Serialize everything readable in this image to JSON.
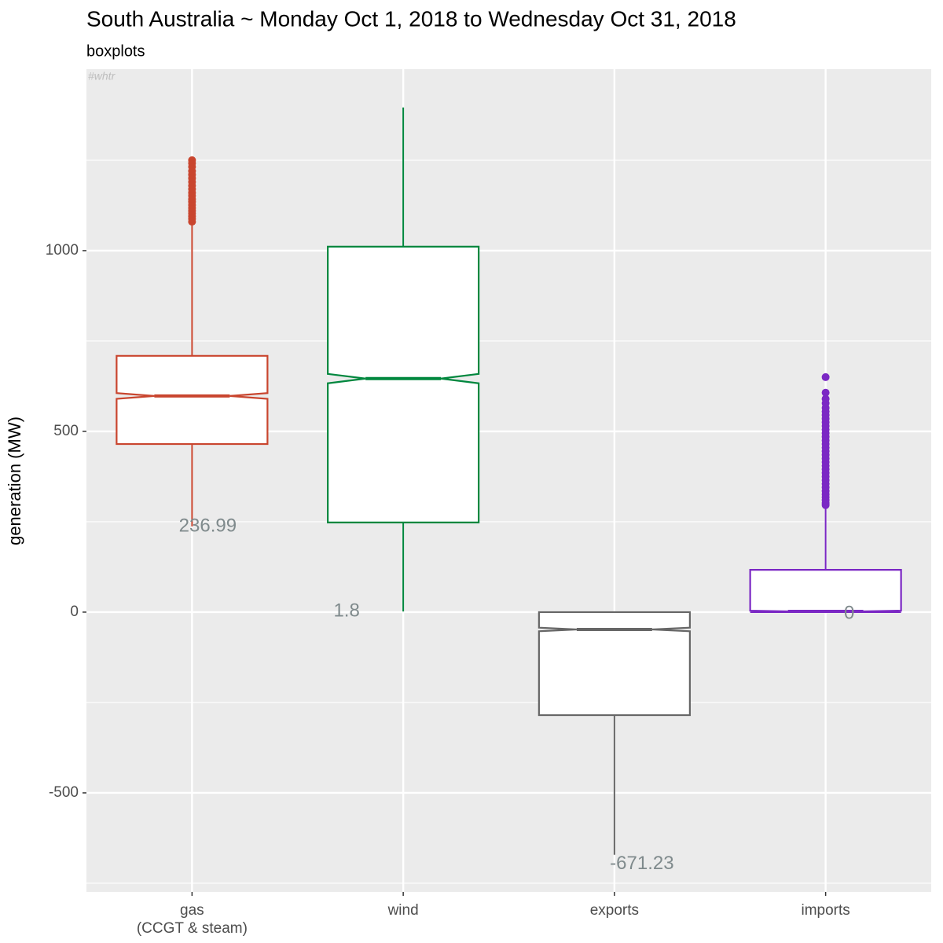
{
  "chart_data": {
    "type": "boxplot",
    "title": "South Australia ~ Monday Oct 1, 2018 to Wednesday Oct 31, 2018",
    "subtitle": "boxplots",
    "watermark": "#whtr",
    "y_label": "generation (MW)",
    "categories": [
      "gas\n(CCGT & steam)",
      "wind",
      "exports",
      "imports"
    ],
    "boxes": [
      {
        "color": "#c9452e",
        "min": 236.99,
        "q1": 465,
        "median": 598,
        "q3": 709,
        "max": 1074,
        "notch": [
          590,
          606
        ],
        "outliers": [
          1080,
          1088,
          1095,
          1103,
          1110,
          1118,
          1126,
          1135,
          1143,
          1152,
          1160,
          1170,
          1180,
          1190,
          1200,
          1210,
          1220,
          1232,
          1242,
          1250
        ]
      },
      {
        "color": "#00873e",
        "min": 1.8,
        "q1": 248,
        "median": 646,
        "q3": 1011,
        "max": 1396,
        "notch": [
          633,
          659
        ],
        "outliers": []
      },
      {
        "color": "#666666",
        "min": -671.23,
        "q1": -285,
        "median": -48,
        "q3": 0,
        "max": 0,
        "notch": [
          -53,
          -43
        ],
        "outliers": []
      },
      {
        "color": "#7b28c4",
        "min": 0,
        "q1": 0,
        "median": 2,
        "q3": 117,
        "max": 291,
        "notch": [
          0,
          4
        ],
        "outliers": [
          296,
          302,
          310,
          318,
          326,
          335,
          345,
          355,
          365,
          375,
          385,
          395,
          405,
          415,
          425,
          435,
          445,
          455,
          465,
          475,
          485,
          495,
          505,
          515,
          525,
          535,
          545,
          555,
          565,
          578,
          590,
          607,
          650
        ]
      }
    ],
    "ylim": [
      -774,
      1502
    ],
    "yticks": [
      -500,
      0,
      500,
      1000
    ],
    "minor_grid": [
      -750,
      -250,
      250,
      750,
      1250
    ],
    "grid": true
  }
}
